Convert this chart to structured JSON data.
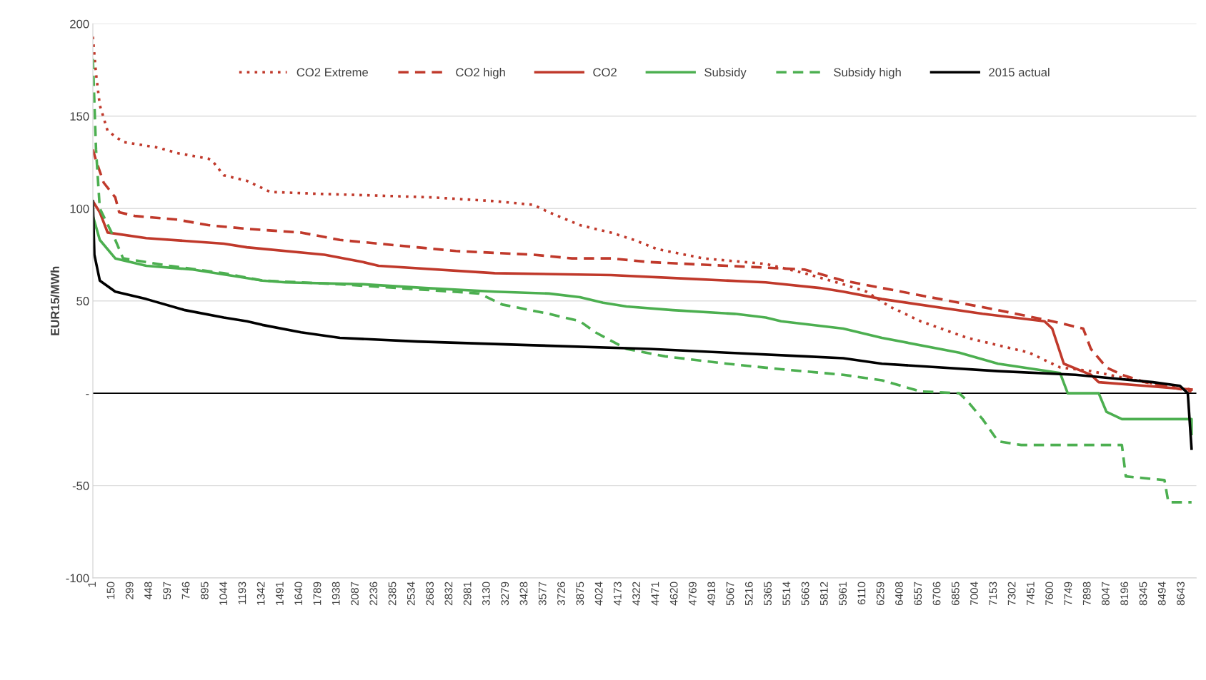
{
  "chart_data": {
    "type": "line",
    "ylabel": "EUR15/MWh",
    "xlim": [
      1,
      8760
    ],
    "xticks": [
      1,
      150,
      299,
      448,
      597,
      746,
      895,
      1044,
      1193,
      1342,
      1491,
      1640,
      1789,
      1938,
      2087,
      2236,
      2385,
      2534,
      2683,
      2832,
      2981,
      3130,
      3279,
      3428,
      3577,
      3726,
      3875,
      4024,
      4173,
      4322,
      4471,
      4620,
      4769,
      4918,
      5067,
      5216,
      5365,
      5514,
      5663,
      5812,
      5961,
      6110,
      6259,
      6408,
      6557,
      6706,
      6855,
      7004,
      7153,
      7302,
      7451,
      7600,
      7749,
      7898,
      8047,
      8196,
      8345,
      8494,
      8643
    ],
    "ylim": [
      -100,
      200
    ],
    "yticks": [
      -100,
      -50,
      {
        "value": 0,
        "label": "-"
      },
      50,
      100,
      150,
      200
    ],
    "grid": "y",
    "legend": "top",
    "marker": "none",
    "ref_lines": [
      {
        "axis": "y",
        "value": 0,
        "color": "#000000",
        "line_style": "solid"
      }
    ],
    "series": [
      {
        "name": "CO2 Extreme",
        "color": "#c0392b",
        "line_style": "dotted",
        "x": [
          1,
          26,
          56,
          118,
          241,
          517,
          671,
          917,
          947,
          1040,
          1224,
          1408,
          1777,
          2269,
          2699,
          3191,
          3498,
          3621,
          3867,
          4113,
          4297,
          4482,
          4850,
          5342,
          5650,
          5957,
          6141,
          6325,
          6571,
          6940,
          7432,
          7678,
          7923,
          8354,
          8722
        ],
        "values": [
          193,
          173,
          156,
          142,
          136,
          133,
          130,
          127,
          126,
          118,
          115,
          109,
          108,
          107,
          106,
          104,
          102,
          98,
          91,
          87,
          83,
          78,
          73,
          70,
          65,
          59,
          55,
          47,
          39,
          30,
          22,
          14,
          12,
          6,
          2
        ]
      },
      {
        "name": "CO2 high",
        "color": "#c0392b",
        "line_style": "dashed",
        "x": [
          1,
          26,
          87,
          179,
          210,
          333,
          671,
          917,
          1224,
          1654,
          1962,
          2576,
          2883,
          3498,
          3805,
          4113,
          4420,
          5034,
          5650,
          5957,
          6264,
          6878,
          7186,
          7616,
          7862,
          7923,
          8046,
          8169,
          8354,
          8722
        ],
        "values": [
          132,
          126,
          114,
          106,
          98,
          96,
          94,
          91,
          89,
          87,
          83,
          79,
          77,
          75,
          73,
          73,
          71,
          69,
          67,
          61,
          57,
          49,
          45,
          39,
          35,
          24,
          14,
          10,
          6,
          1
        ]
      },
      {
        "name": "CO2",
        "color": "#c0392b",
        "line_style": "solid",
        "x": [
          1,
          56,
          118,
          425,
          1040,
          1224,
          1839,
          2146,
          2269,
          3191,
          4113,
          4727,
          5342,
          5772,
          5957,
          6264,
          7063,
          7554,
          7616,
          7708,
          7923,
          7985,
          8354,
          8722
        ],
        "values": [
          104,
          98,
          87,
          84,
          81,
          79,
          75,
          71,
          69,
          65,
          64,
          62,
          60,
          57,
          55,
          51,
          43,
          39,
          35,
          16,
          10,
          6,
          4,
          2
        ]
      },
      {
        "name": "Subsidy",
        "color": "#4caf50",
        "line_style": "solid",
        "x": [
          1,
          56,
          179,
          425,
          794,
          1163,
          1347,
          1531,
          2146,
          2638,
          3191,
          3621,
          3867,
          4051,
          4236,
          4604,
          5096,
          5342,
          5465,
          5957,
          6264,
          6878,
          7186,
          7678,
          7739,
          7985,
          8046,
          8169,
          8722,
          8722
        ],
        "values": [
          96,
          83,
          73,
          69,
          67,
          63,
          61,
          60,
          59,
          57,
          55,
          54,
          52,
          49,
          47,
          45,
          43,
          41,
          39,
          35,
          30,
          22,
          16,
          11,
          0,
          0,
          -10,
          -14,
          -14,
          -22
        ]
      },
      {
        "name": "Subsidy high",
        "color": "#4caf50",
        "line_style": "dashed",
        "x": [
          1,
          26,
          56,
          179,
          241,
          609,
          1040,
          1347,
          1962,
          2638,
          3068,
          3252,
          3621,
          3867,
          3990,
          4236,
          4543,
          5034,
          5465,
          5957,
          6264,
          6571,
          6878,
          6940,
          7063,
          7186,
          7370,
          8169,
          8200,
          8507,
          8538,
          8722
        ],
        "values": [
          181,
          132,
          100,
          83,
          73,
          69,
          65,
          61,
          59,
          56,
          54,
          48,
          43,
          39,
          33,
          24,
          20,
          16,
          13,
          10,
          7,
          1,
          0,
          -4,
          -14,
          -26,
          -28,
          -28,
          -45,
          -47,
          -59,
          -59
        ]
      },
      {
        "name": "2015 actual",
        "color": "#000000",
        "line_style": "solid",
        "x": [
          1,
          13,
          56,
          179,
          425,
          732,
          1040,
          1224,
          1347,
          1654,
          1962,
          2576,
          3498,
          4420,
          5034,
          5650,
          5957,
          6264,
          7186,
          7801,
          8415,
          8630,
          8692,
          8722
        ],
        "values": [
          104,
          75,
          61,
          55,
          51,
          45,
          41,
          39,
          37,
          33,
          30,
          28,
          26,
          24,
          22,
          20,
          19,
          16,
          12,
          10,
          6,
          4,
          0,
          -30
        ]
      }
    ]
  }
}
